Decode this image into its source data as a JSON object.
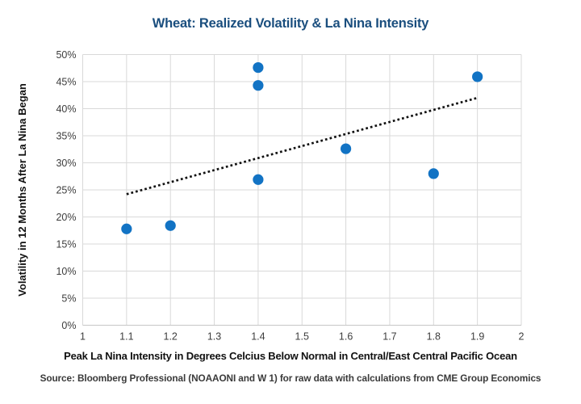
{
  "title": "Wheat: Realized Volatility & La Nina Intensity",
  "source_note": "Source: Bloomberg Professional (NOAAONI and W 1) for raw data with calculations from CME Group Economics",
  "colors": {
    "title": "#1a4e7e",
    "point": "#1273c4",
    "grid": "#d9d9d9",
    "axis_line": "#c7c7c7",
    "trend": "#111111",
    "tick_text": "#3d3d3d"
  },
  "chart_data": {
    "type": "scatter",
    "title": "Wheat: Realized Volatility & La Nina Intensity",
    "xlabel": "Peak La Nina Intensity in Degrees Celcius Below Normal in Central/East Central Pacific Ocean",
    "ylabel": "Volatility in 12 Months After La Nina Began",
    "xlim": [
      1,
      2
    ],
    "ylim": [
      0,
      50
    ],
    "grid": true,
    "legend": "none",
    "x_ticks": [
      {
        "v": 1.0,
        "label": "1"
      },
      {
        "v": 1.1,
        "label": "1.1"
      },
      {
        "v": 1.2,
        "label": "1.2"
      },
      {
        "v": 1.3,
        "label": "1.3"
      },
      {
        "v": 1.4,
        "label": "1.4"
      },
      {
        "v": 1.5,
        "label": "1.5"
      },
      {
        "v": 1.6,
        "label": "1.6"
      },
      {
        "v": 1.7,
        "label": "1.7"
      },
      {
        "v": 1.8,
        "label": "1.8"
      },
      {
        "v": 1.9,
        "label": "1.9"
      },
      {
        "v": 2.0,
        "label": "2"
      }
    ],
    "y_ticks": [
      {
        "v": 0,
        "label": "0%"
      },
      {
        "v": 5,
        "label": "5%"
      },
      {
        "v": 10,
        "label": "10%"
      },
      {
        "v": 15,
        "label": "15%"
      },
      {
        "v": 20,
        "label": "20%"
      },
      {
        "v": 25,
        "label": "25%"
      },
      {
        "v": 30,
        "label": "30%"
      },
      {
        "v": 35,
        "label": "35%"
      },
      {
        "v": 40,
        "label": "40%"
      },
      {
        "v": 45,
        "label": "45%"
      },
      {
        "v": 50,
        "label": "50%"
      }
    ],
    "points": [
      {
        "x": 1.1,
        "y": 17.8
      },
      {
        "x": 1.2,
        "y": 18.4
      },
      {
        "x": 1.4,
        "y": 26.9
      },
      {
        "x": 1.4,
        "y": 44.3
      },
      {
        "x": 1.4,
        "y": 47.6
      },
      {
        "x": 1.6,
        "y": 32.6
      },
      {
        "x": 1.8,
        "y": 28.0
      },
      {
        "x": 1.9,
        "y": 45.9
      }
    ],
    "trendline": {
      "style": "dotted",
      "x1": 1.1,
      "y1": 24.2,
      "x2": 1.9,
      "y2": 42.0
    }
  }
}
